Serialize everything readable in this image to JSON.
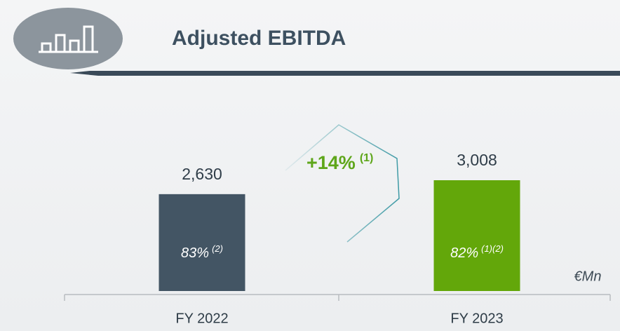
{
  "chart_data": {
    "type": "bar",
    "title": "Adjusted EBITDA",
    "categories": [
      "FY 2022",
      "FY 2023"
    ],
    "values": [
      2630,
      3008
    ],
    "value_labels": [
      "2,630",
      "3,008"
    ],
    "colors": [
      "#435564",
      "#63a70a"
    ],
    "inner_labels": [
      {
        "text": "83%",
        "note": "(2)"
      },
      {
        "text": "82%",
        "note": "(1)(2)"
      }
    ],
    "growth": {
      "text": "+14%",
      "note": "(1)"
    },
    "unit": "€Mn"
  }
}
